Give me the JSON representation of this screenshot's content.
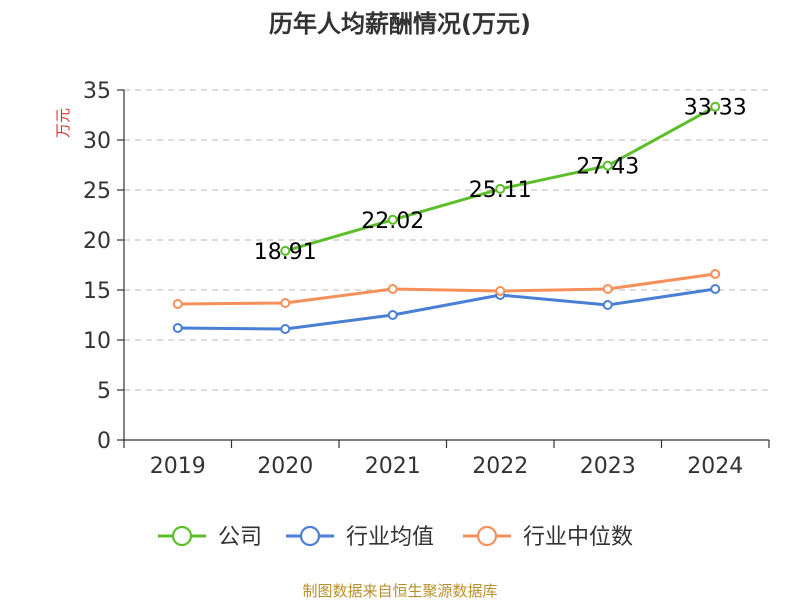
{
  "chart_data": {
    "type": "line",
    "title": "历年人均薪酬情况(万元)",
    "ylabel": "万元",
    "xlabel": "",
    "categories": [
      "2019",
      "2020",
      "2021",
      "2022",
      "2023",
      "2024"
    ],
    "ylim": [
      0,
      35
    ],
    "yticks": [
      0,
      5,
      10,
      15,
      20,
      25,
      30,
      35
    ],
    "grid": true,
    "legend_position": "bottom-center",
    "series": [
      {
        "name": "公司",
        "color": "#5cbf2a",
        "values": [
          null,
          18.91,
          22.02,
          25.11,
          27.43,
          33.33
        ],
        "labels": [
          "",
          "18.91",
          "22.02",
          "25.11",
          "27.43",
          "33.33"
        ]
      },
      {
        "name": "行业均值",
        "color": "#4a7fd6",
        "values": [
          11.2,
          11.1,
          12.5,
          14.5,
          13.5,
          15.1
        ],
        "labels": []
      },
      {
        "name": "行业中位数",
        "color": "#f5905a",
        "values": [
          13.6,
          13.7,
          15.1,
          14.9,
          15.1,
          16.6
        ],
        "labels": []
      }
    ]
  },
  "footer": {
    "source": "制图数据来自恒生聚源数据库"
  }
}
